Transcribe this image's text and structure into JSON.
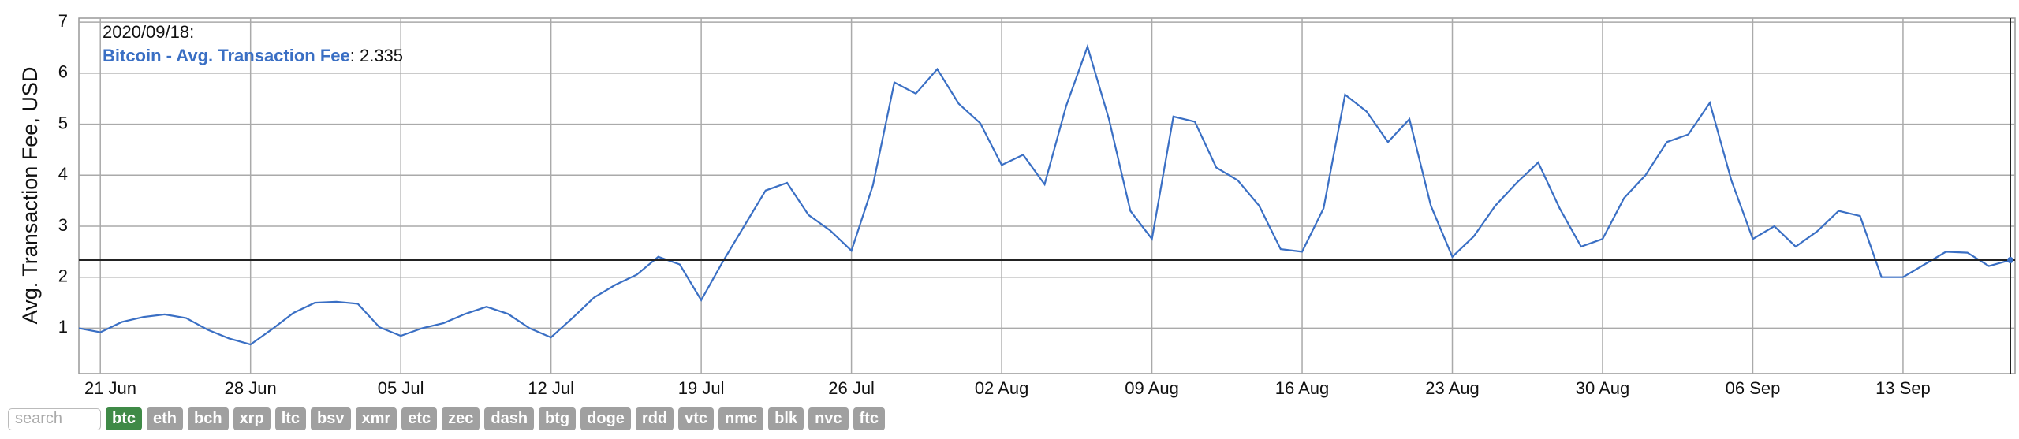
{
  "chart_data": {
    "type": "line",
    "y_label": "Avg. Transaction Fee, USD",
    "categories": [
      null,
      "21 Jun",
      null,
      null,
      null,
      null,
      null,
      null,
      "28 Jun",
      null,
      null,
      null,
      null,
      null,
      null,
      "05 Jul",
      null,
      null,
      null,
      null,
      null,
      null,
      "12 Jul",
      null,
      null,
      null,
      null,
      null,
      null,
      "19 Jul",
      null,
      null,
      null,
      null,
      null,
      null,
      "26 Jul",
      null,
      null,
      null,
      null,
      null,
      null,
      "02 Aug",
      null,
      null,
      null,
      null,
      null,
      null,
      "09 Aug",
      null,
      null,
      null,
      null,
      null,
      null,
      "16 Aug",
      null,
      null,
      null,
      null,
      null,
      null,
      "23 Aug",
      null,
      null,
      null,
      null,
      null,
      null,
      "30 Aug",
      null,
      null,
      null,
      null,
      null,
      null,
      "06 Sep",
      null,
      null,
      null,
      null,
      null,
      null,
      "13 Sep",
      null,
      null,
      null,
      null,
      null
    ],
    "series": [
      {
        "name": "Bitcoin - Avg. Transaction Fee",
        "color": "#3a6fc4",
        "values": [
          1.0,
          0.92,
          1.12,
          1.22,
          1.27,
          1.2,
          0.97,
          0.8,
          0.68,
          0.98,
          1.3,
          1.5,
          1.52,
          1.48,
          1.02,
          0.85,
          1.0,
          1.1,
          1.28,
          1.42,
          1.28,
          1.0,
          0.82,
          1.2,
          1.6,
          1.85,
          2.05,
          2.4,
          2.25,
          1.55,
          2.3,
          3.0,
          3.7,
          3.85,
          3.22,
          2.92,
          2.52,
          3.8,
          5.82,
          5.6,
          6.08,
          5.4,
          5.02,
          4.2,
          4.4,
          3.82,
          5.35,
          6.52,
          5.1,
          3.3,
          2.75,
          5.15,
          5.05,
          4.15,
          3.9,
          3.4,
          2.55,
          2.5,
          3.35,
          5.58,
          5.25,
          4.65,
          5.1,
          3.4,
          2.4,
          2.8,
          3.4,
          3.85,
          4.25,
          3.35,
          2.6,
          2.75,
          3.55,
          4.0,
          4.65,
          4.8,
          5.42,
          3.9,
          2.75,
          3.0,
          2.6,
          2.9,
          3.3,
          3.2,
          2.0,
          2.0,
          2.25,
          2.5,
          2.48,
          2.22,
          2.335
        ]
      }
    ],
    "ylim": [
      0.11,
      7.08
    ],
    "yticks": [
      1,
      2,
      3,
      4,
      5,
      6,
      7
    ],
    "grid": true,
    "tooltip": {
      "date": "2020/09/18:",
      "value_label": ": 2.335",
      "index": 90
    }
  },
  "controls": {
    "search_placeholder": "search",
    "active": "btc",
    "coins": [
      "btc",
      "eth",
      "bch",
      "xrp",
      "ltc",
      "bsv",
      "xmr",
      "etc",
      "zec",
      "dash",
      "btg",
      "doge",
      "rdd",
      "vtc",
      "nmc",
      "blk",
      "nvc",
      "ftc"
    ]
  }
}
